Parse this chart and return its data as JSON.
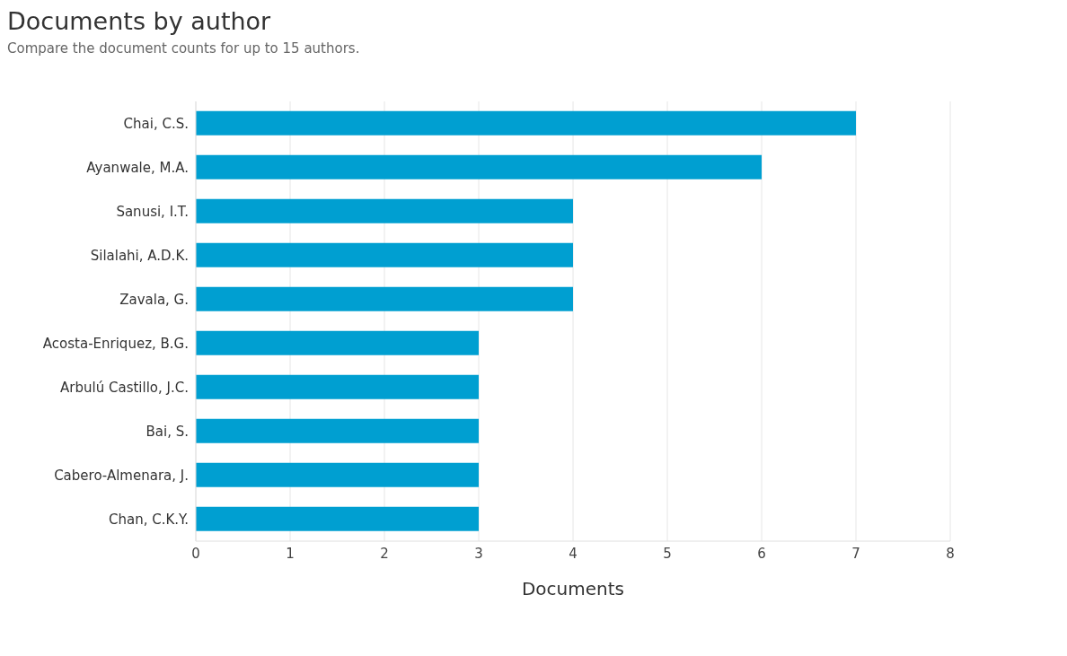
{
  "chart_data": {
    "type": "bar",
    "orientation": "horizontal",
    "title": "Documents by author",
    "subtitle": "Compare the document counts for up to 15 authors.",
    "xlabel": "Documents",
    "categories": [
      "Chai, C.S.",
      "Ayanwale, M.A.",
      "Sanusi, I.T.",
      "Silalahi, A.D.K.",
      "Zavala, G.",
      "Acosta-Enriquez, B.G.",
      "Arbulú Castillo, J.C.",
      "Bai, S.",
      "Cabero-Almenara, J.",
      "Chan, C.K.Y."
    ],
    "values": [
      7,
      6,
      4,
      4,
      4,
      3,
      3,
      3,
      3,
      3
    ],
    "color": "#009fd1",
    "xlim": [
      0,
      8
    ],
    "xticks": [
      0,
      1,
      2,
      3,
      4,
      5,
      6,
      7,
      8
    ],
    "grid": "x"
  }
}
